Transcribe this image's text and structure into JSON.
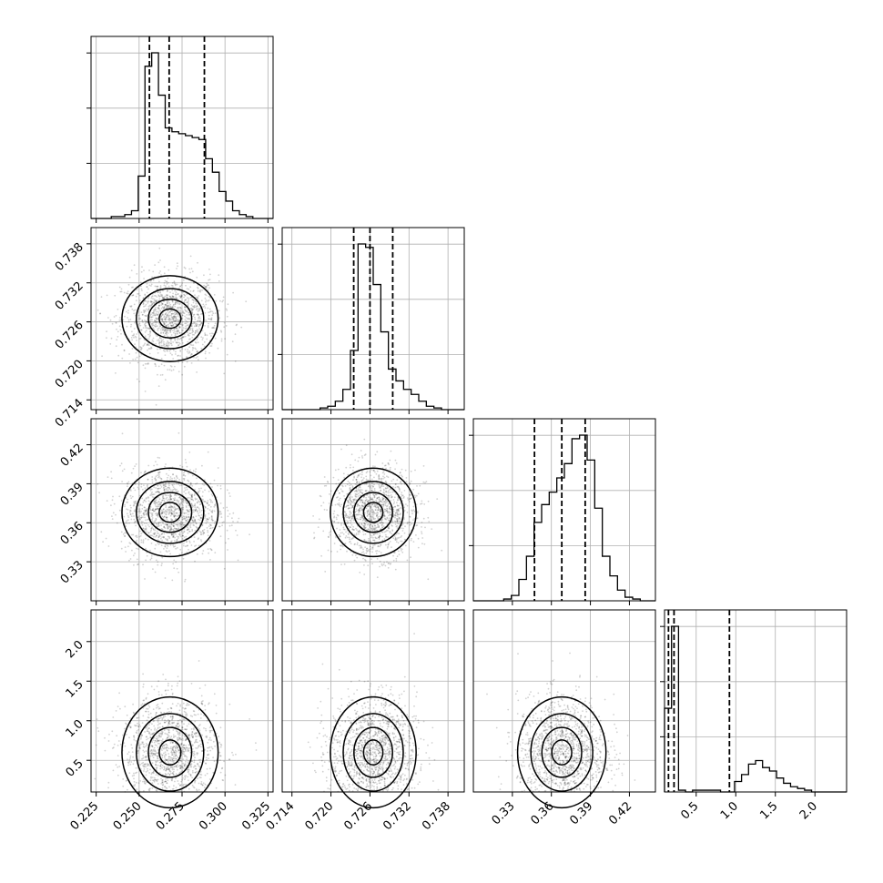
{
  "chart_data": {
    "type": "corner",
    "n_params": 4,
    "panel_grid": true,
    "colors": {
      "points": "#000000",
      "grid": "#b0b0b0",
      "line": "#000000"
    },
    "params": [
      {
        "range": [
          0.222,
          0.328
        ],
        "ticks": [
          0.225,
          0.25,
          0.275,
          0.3,
          0.325
        ],
        "tick_labels": [
          "0.225",
          "0.250",
          "0.275",
          "0.300",
          "0.325"
        ],
        "mean": 0.268,
        "sd": 0.014,
        "quantiles": [
          0.256,
          0.2675,
          0.288
        ]
      },
      {
        "range": [
          0.7125,
          0.7405
        ],
        "ticks": [
          0.714,
          0.72,
          0.726,
          0.732,
          0.738
        ],
        "tick_labels": [
          "0.714",
          "0.720",
          "0.726",
          "0.732",
          "0.738"
        ],
        "mean": 0.7265,
        "sd": 0.0033,
        "quantiles": [
          0.7235,
          0.726,
          0.7295
        ]
      },
      {
        "range": [
          0.3,
          0.44
        ],
        "ticks": [
          0.33,
          0.36,
          0.39,
          0.42
        ],
        "tick_labels": [
          "0.33",
          "0.36",
          "0.39",
          "0.42"
        ],
        "mean": 0.368,
        "sd": 0.017,
        "quantiles": [
          0.347,
          0.368,
          0.386
        ]
      },
      {
        "range": [
          0.1,
          2.4
        ],
        "ticks": [
          0.5,
          1.0,
          1.5,
          2.0
        ],
        "tick_labels": [
          "0.5",
          "1.0",
          "1.5",
          "2.0"
        ],
        "mean": 0.6,
        "sd": 0.35,
        "quantiles": [
          0.15,
          0.22,
          0.92
        ]
      }
    ],
    "hist_ticks": [
      3,
      3,
      3,
      3
    ],
    "histograms": [
      [
        0,
        0,
        0,
        1,
        1,
        2,
        4,
        22,
        79,
        86,
        64,
        47,
        45,
        44,
        43,
        42,
        41,
        31,
        24,
        14,
        9,
        4,
        2,
        1,
        0,
        0,
        0
      ],
      [
        0,
        0,
        0,
        0,
        0,
        1,
        2,
        5,
        12,
        35,
        98,
        96,
        74,
        46,
        24,
        17,
        12,
        9,
        5,
        2,
        1,
        0,
        0,
        0
      ],
      [
        0,
        0,
        0,
        0,
        1,
        3,
        12,
        25,
        44,
        54,
        61,
        69,
        77,
        91,
        93,
        79,
        52,
        25,
        14,
        6,
        2,
        1,
        0,
        0
      ],
      [
        48,
        95,
        1,
        0,
        1,
        1,
        1,
        1,
        0,
        0,
        6,
        10,
        16,
        18,
        14,
        12,
        8,
        5,
        3,
        2,
        1,
        0,
        0,
        0,
        0,
        0
      ]
    ]
  }
}
